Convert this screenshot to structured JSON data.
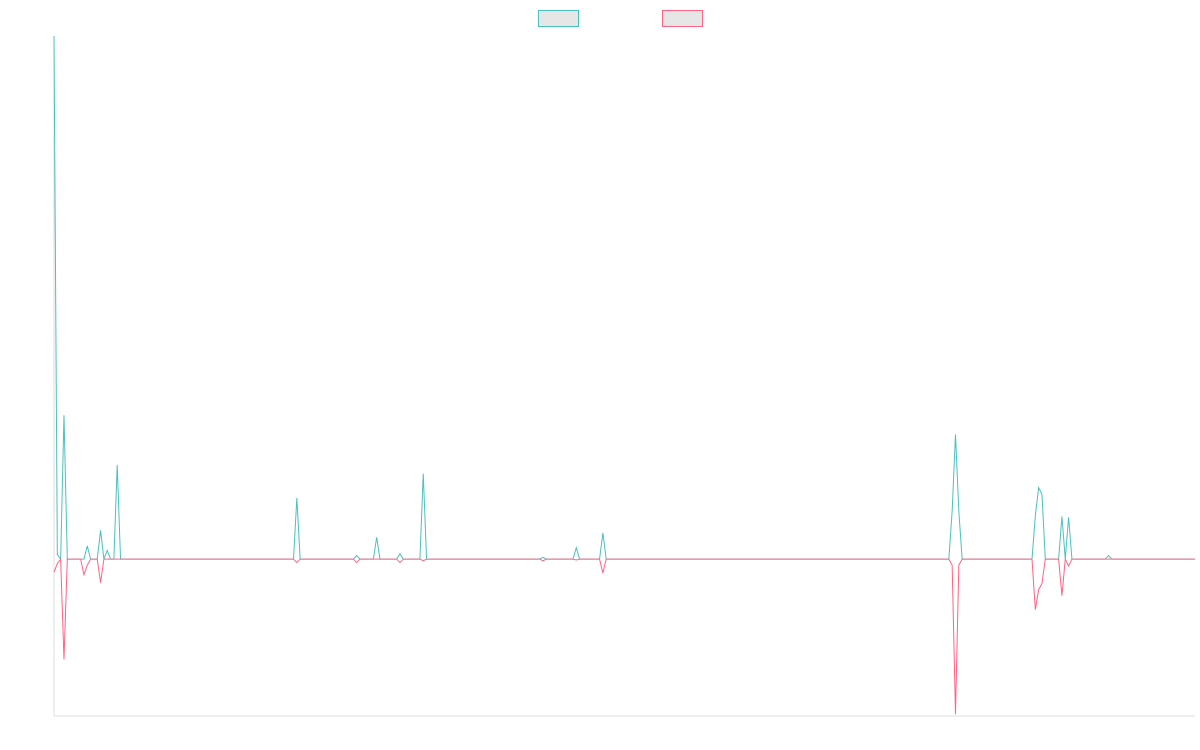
{
  "chart_data": {
    "type": "line",
    "legend": {
      "position": "top-center",
      "entries": [
        {
          "name": "",
          "color": "#4bc0c0",
          "fill": "#e6e6e6"
        },
        {
          "name": "",
          "color": "#ff6384",
          "fill": "#e6e6e6"
        }
      ]
    },
    "grid": false,
    "x_points": 344,
    "ylim": [
      -1.8,
      6.0
    ],
    "series": [
      {
        "name": "",
        "color": "#4bc0c0",
        "points": [
          [
            0,
            6.0
          ],
          [
            1,
            0.05
          ],
          [
            2,
            0.0
          ],
          [
            3,
            1.65
          ],
          [
            4,
            0.0
          ],
          [
            5,
            0.0
          ],
          [
            6,
            0.0
          ],
          [
            7,
            0.0
          ],
          [
            8,
            0.0
          ],
          [
            9,
            0.0
          ],
          [
            10,
            0.15
          ],
          [
            11,
            0.0
          ],
          [
            12,
            0.0
          ],
          [
            13,
            0.0
          ],
          [
            14,
            0.33
          ],
          [
            15,
            0.0
          ],
          [
            16,
            0.1
          ],
          [
            17,
            0.0
          ],
          [
            18,
            0.0
          ],
          [
            19,
            1.08
          ],
          [
            20,
            0.0
          ],
          [
            72,
            0.0
          ],
          [
            73,
            0.7
          ],
          [
            74,
            0.0
          ],
          [
            90,
            0.0
          ],
          [
            91,
            0.04
          ],
          [
            92,
            0.0
          ],
          [
            96,
            0.0
          ],
          [
            97,
            0.25
          ],
          [
            98,
            0.0
          ],
          [
            103,
            0.0
          ],
          [
            104,
            0.06
          ],
          [
            105,
            0.0
          ],
          [
            110,
            0.0
          ],
          [
            111,
            0.98
          ],
          [
            112,
            0.0
          ],
          [
            146,
            0.0
          ],
          [
            147,
            0.02
          ],
          [
            148,
            0.0
          ],
          [
            156,
            0.0
          ],
          [
            157,
            0.13
          ],
          [
            158,
            0.0
          ],
          [
            164,
            0.0
          ],
          [
            165,
            0.3
          ],
          [
            166,
            0.0
          ],
          [
            269,
            0.0
          ],
          [
            270,
            0.55
          ],
          [
            271,
            1.43
          ],
          [
            272,
            0.55
          ],
          [
            273,
            0.0
          ],
          [
            294,
            0.0
          ],
          [
            295,
            0.5
          ],
          [
            296,
            0.82
          ],
          [
            297,
            0.74
          ],
          [
            298,
            0.0
          ],
          [
            302,
            0.0
          ],
          [
            303,
            0.49
          ],
          [
            304,
            0.0
          ],
          [
            305,
            0.48
          ],
          [
            306,
            0.0
          ],
          [
            316,
            0.0
          ],
          [
            317,
            0.04
          ],
          [
            318,
            0.0
          ],
          [
            343,
            0.0
          ]
        ]
      },
      {
        "name": "",
        "color": "#ff6384",
        "points": [
          [
            0,
            -0.15
          ],
          [
            1,
            -0.05
          ],
          [
            2,
            0.0
          ],
          [
            3,
            -1.15
          ],
          [
            4,
            0.0
          ],
          [
            5,
            0.0
          ],
          [
            6,
            0.0
          ],
          [
            7,
            0.0
          ],
          [
            8,
            0.0
          ],
          [
            9,
            -0.18
          ],
          [
            10,
            -0.07
          ],
          [
            11,
            0.0
          ],
          [
            12,
            0.0
          ],
          [
            13,
            0.0
          ],
          [
            14,
            -0.27
          ],
          [
            15,
            0.0
          ],
          [
            16,
            0.0
          ],
          [
            17,
            0.0
          ],
          [
            18,
            0.0
          ],
          [
            19,
            0.0
          ],
          [
            20,
            0.0
          ],
          [
            72,
            0.0
          ],
          [
            73,
            -0.04
          ],
          [
            74,
            0.0
          ],
          [
            90,
            0.0
          ],
          [
            91,
            -0.04
          ],
          [
            92,
            0.0
          ],
          [
            103,
            0.0
          ],
          [
            104,
            -0.04
          ],
          [
            105,
            0.0
          ],
          [
            110,
            0.0
          ],
          [
            111,
            -0.02
          ],
          [
            112,
            0.0
          ],
          [
            146,
            0.0
          ],
          [
            147,
            -0.02
          ],
          [
            148,
            0.0
          ],
          [
            156,
            0.0
          ],
          [
            157,
            -0.01
          ],
          [
            158,
            0.0
          ],
          [
            164,
            0.0
          ],
          [
            165,
            -0.16
          ],
          [
            166,
            0.0
          ],
          [
            269,
            0.0
          ],
          [
            270,
            -0.07
          ],
          [
            271,
            -1.78
          ],
          [
            272,
            -0.07
          ],
          [
            273,
            0.0
          ],
          [
            294,
            0.0
          ],
          [
            295,
            -0.58
          ],
          [
            296,
            -0.35
          ],
          [
            297,
            -0.28
          ],
          [
            298,
            0.0
          ],
          [
            302,
            0.0
          ],
          [
            303,
            -0.42
          ],
          [
            304,
            0.0
          ],
          [
            305,
            -0.08
          ],
          [
            306,
            0.0
          ],
          [
            343,
            0.0
          ]
        ]
      }
    ]
  }
}
